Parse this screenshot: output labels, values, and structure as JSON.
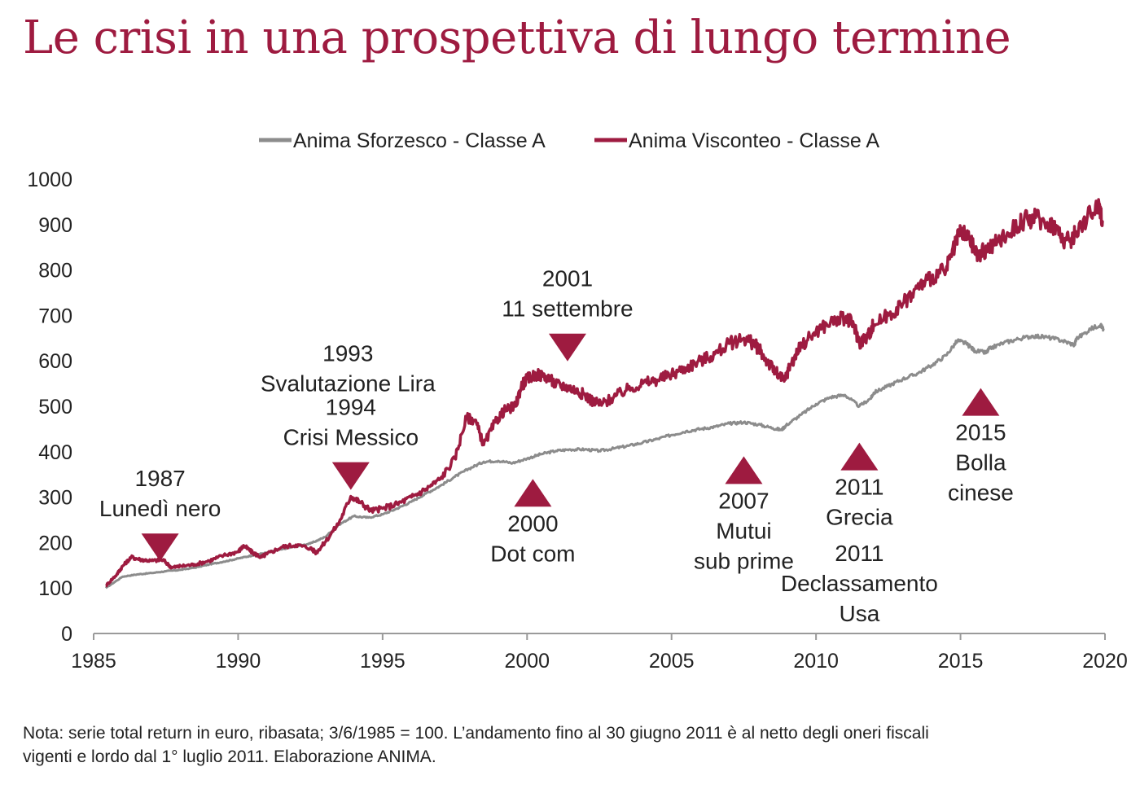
{
  "title": "Le crisi in una prospettiva di lungo termine",
  "note": {
    "line1": "Nota: serie total return in euro, ribasata;  3/6/1985 = 100. L’andamento fino al 30 giugno 2011 è al netto degli oneri fiscali",
    "line2": "vigenti e lordo dal 1° luglio 2011. Elaborazione ANIMA."
  },
  "colors": {
    "accent": "#9e1b40",
    "gray_series": "#8c8c8c",
    "text": "#222222",
    "axis": "#9a9a9a"
  },
  "chart_data": {
    "type": "line",
    "xlim": [
      1985,
      2020
    ],
    "ylim": [
      0,
      1000
    ],
    "x_ticks": [
      "1985",
      "1990",
      "1995",
      "2000",
      "2005",
      "2010",
      "2015",
      "2020"
    ],
    "y_ticks": [
      "0",
      "100",
      "200",
      "300",
      "400",
      "500",
      "600",
      "700",
      "800",
      "900",
      "1000"
    ],
    "legend_position": "top-center",
    "grid": false,
    "series": [
      {
        "name": "Anima Sforzesco - Classe A",
        "color": "#8c8c8c",
        "points": [
          [
            1985.42,
            100
          ],
          [
            1986,
            125
          ],
          [
            1986.5,
            130
          ],
          [
            1987,
            133
          ],
          [
            1987.5,
            137
          ],
          [
            1988,
            140
          ],
          [
            1988.5,
            145
          ],
          [
            1989,
            152
          ],
          [
            1989.5,
            158
          ],
          [
            1990,
            165
          ],
          [
            1990.5,
            172
          ],
          [
            1991,
            178
          ],
          [
            1991.5,
            185
          ],
          [
            1992,
            192
          ],
          [
            1992.5,
            198
          ],
          [
            1993,
            212
          ],
          [
            1993.5,
            240
          ],
          [
            1994,
            258
          ],
          [
            1994.5,
            255
          ],
          [
            1995,
            262
          ],
          [
            1995.5,
            275
          ],
          [
            1996,
            290
          ],
          [
            1996.5,
            308
          ],
          [
            1997,
            325
          ],
          [
            1997.5,
            345
          ],
          [
            1998,
            363
          ],
          [
            1998.5,
            378
          ],
          [
            1999,
            380
          ],
          [
            1999.5,
            375
          ],
          [
            2000,
            385
          ],
          [
            2000.5,
            395
          ],
          [
            2001,
            402
          ],
          [
            2001.5,
            405
          ],
          [
            2002,
            405
          ],
          [
            2002.5,
            402
          ],
          [
            2003,
            407
          ],
          [
            2003.5,
            413
          ],
          [
            2004,
            420
          ],
          [
            2004.5,
            428
          ],
          [
            2005,
            437
          ],
          [
            2005.5,
            445
          ],
          [
            2006,
            450
          ],
          [
            2006.5,
            455
          ],
          [
            2007,
            462
          ],
          [
            2007.5,
            465
          ],
          [
            2008,
            460
          ],
          [
            2008.5,
            452
          ],
          [
            2008.8,
            448
          ],
          [
            2009,
            460
          ],
          [
            2009.5,
            482
          ],
          [
            2010,
            505
          ],
          [
            2010.5,
            520
          ],
          [
            2011,
            525
          ],
          [
            2011.5,
            500
          ],
          [
            2011.9,
            518
          ],
          [
            2012,
            530
          ],
          [
            2012.5,
            545
          ],
          [
            2013,
            560
          ],
          [
            2013.5,
            572
          ],
          [
            2014,
            590
          ],
          [
            2014.5,
            612
          ],
          [
            2014.9,
            645
          ],
          [
            2015.2,
            638
          ],
          [
            2015.5,
            622
          ],
          [
            2015.9,
            618
          ],
          [
            2016,
            627
          ],
          [
            2016.5,
            640
          ],
          [
            2017,
            648
          ],
          [
            2017.5,
            655
          ],
          [
            2018,
            652
          ],
          [
            2018.5,
            645
          ],
          [
            2018.95,
            635
          ],
          [
            2019,
            648
          ],
          [
            2019.5,
            670
          ],
          [
            2019.85,
            680
          ],
          [
            2019.95,
            668
          ]
        ]
      },
      {
        "name": "Anima Visconteo - Classe A",
        "color": "#9e1b40",
        "points": [
          [
            1985.42,
            105
          ],
          [
            1985.8,
            130
          ],
          [
            1986,
            148
          ],
          [
            1986.3,
            168
          ],
          [
            1986.6,
            163
          ],
          [
            1987,
            160
          ],
          [
            1987.4,
            162
          ],
          [
            1987.7,
            145
          ],
          [
            1988,
            148
          ],
          [
            1988.5,
            152
          ],
          [
            1989,
            160
          ],
          [
            1989.5,
            172
          ],
          [
            1990,
            180
          ],
          [
            1990.2,
            193
          ],
          [
            1990.5,
            178
          ],
          [
            1990.8,
            168
          ],
          [
            1991,
            175
          ],
          [
            1991.5,
            190
          ],
          [
            1992,
            195
          ],
          [
            1992.5,
            188
          ],
          [
            1992.7,
            178
          ],
          [
            1993,
            200
          ],
          [
            1993.5,
            245
          ],
          [
            1993.9,
            302
          ],
          [
            1994.2,
            290
          ],
          [
            1994.6,
            270
          ],
          [
            1995,
            275
          ],
          [
            1995.5,
            285
          ],
          [
            1996,
            300
          ],
          [
            1996.5,
            318
          ],
          [
            1997,
            340
          ],
          [
            1997.5,
            385
          ],
          [
            1997.9,
            475
          ],
          [
            1998.2,
            470
          ],
          [
            1998.5,
            415
          ],
          [
            1998.9,
            465
          ],
          [
            1999.2,
            490
          ],
          [
            1999.6,
            500
          ],
          [
            1999.8,
            545
          ],
          [
            2000,
            560
          ],
          [
            2000.3,
            570
          ],
          [
            2000.7,
            565
          ],
          [
            2001,
            548
          ],
          [
            2001.3,
            545
          ],
          [
            2001.7,
            535
          ],
          [
            2002,
            525
          ],
          [
            2002.3,
            510
          ],
          [
            2002.6,
            505
          ],
          [
            2003,
            520
          ],
          [
            2003.5,
            538
          ],
          [
            2004,
            550
          ],
          [
            2004.5,
            558
          ],
          [
            2005,
            570
          ],
          [
            2005.5,
            585
          ],
          [
            2006,
            600
          ],
          [
            2006.5,
            615
          ],
          [
            2007,
            638
          ],
          [
            2007.5,
            650
          ],
          [
            2007.8,
            640
          ],
          [
            2008,
            628
          ],
          [
            2008.3,
            600
          ],
          [
            2008.6,
            575
          ],
          [
            2008.9,
            555
          ],
          [
            2009.1,
            590
          ],
          [
            2009.5,
            635
          ],
          [
            2010,
            665
          ],
          [
            2010.5,
            685
          ],
          [
            2011,
            695
          ],
          [
            2011.3,
            680
          ],
          [
            2011.5,
            640
          ],
          [
            2011.8,
            655
          ],
          [
            2012,
            680
          ],
          [
            2012.5,
            700
          ],
          [
            2013,
            725
          ],
          [
            2013.5,
            760
          ],
          [
            2014,
            785
          ],
          [
            2014.5,
            800
          ],
          [
            2014.8,
            850
          ],
          [
            2015,
            885
          ],
          [
            2015.3,
            868
          ],
          [
            2015.6,
            830
          ],
          [
            2015.9,
            845
          ],
          [
            2016.3,
            862
          ],
          [
            2016.8,
            890
          ],
          [
            2017.2,
            910
          ],
          [
            2017.6,
            915
          ],
          [
            2018,
            905
          ],
          [
            2018.3,
            895
          ],
          [
            2018.5,
            870
          ],
          [
            2018.8,
            862
          ],
          [
            2019,
            885
          ],
          [
            2019.5,
            925
          ],
          [
            2019.8,
            945
          ],
          [
            2019.92,
            905
          ]
        ]
      }
    ],
    "annotations": [
      {
        "label_lines": [
          "1987",
          "Lunedì nero"
        ],
        "direction": "down",
        "x": 1987.3,
        "y": 220
      },
      {
        "label_lines": [
          "1993",
          "Svalutazione  Lira"
        ],
        "direction": "none",
        "x": 1993.8,
        "y": 650
      },
      {
        "label_lines": [
          "1994",
          "Crisi Messico"
        ],
        "direction": "down",
        "x": 1993.9,
        "y": 377
      },
      {
        "label_lines": [
          "2000",
          "Dot com"
        ],
        "direction": "up",
        "x": 2000.2,
        "y": 340
      },
      {
        "label_lines": [
          "2001",
          "11 settembre"
        ],
        "direction": "down",
        "x": 2001.4,
        "y": 660
      },
      {
        "label_lines": [
          "2007",
          "Mutui",
          "sub prime"
        ],
        "direction": "up",
        "x": 2007.5,
        "y": 390
      },
      {
        "label_lines": [
          "2011",
          "Grecia"
        ],
        "direction": "up",
        "x": 2011.5,
        "y": 420
      },
      {
        "label_lines": [
          "2011",
          "Declassamento",
          "Usa"
        ],
        "direction": "none",
        "x": 2011.5,
        "y": 210
      },
      {
        "label_lines": [
          "2015",
          "Bolla",
          "cinese"
        ],
        "direction": "up",
        "x": 2015.7,
        "y": 540
      }
    ]
  }
}
